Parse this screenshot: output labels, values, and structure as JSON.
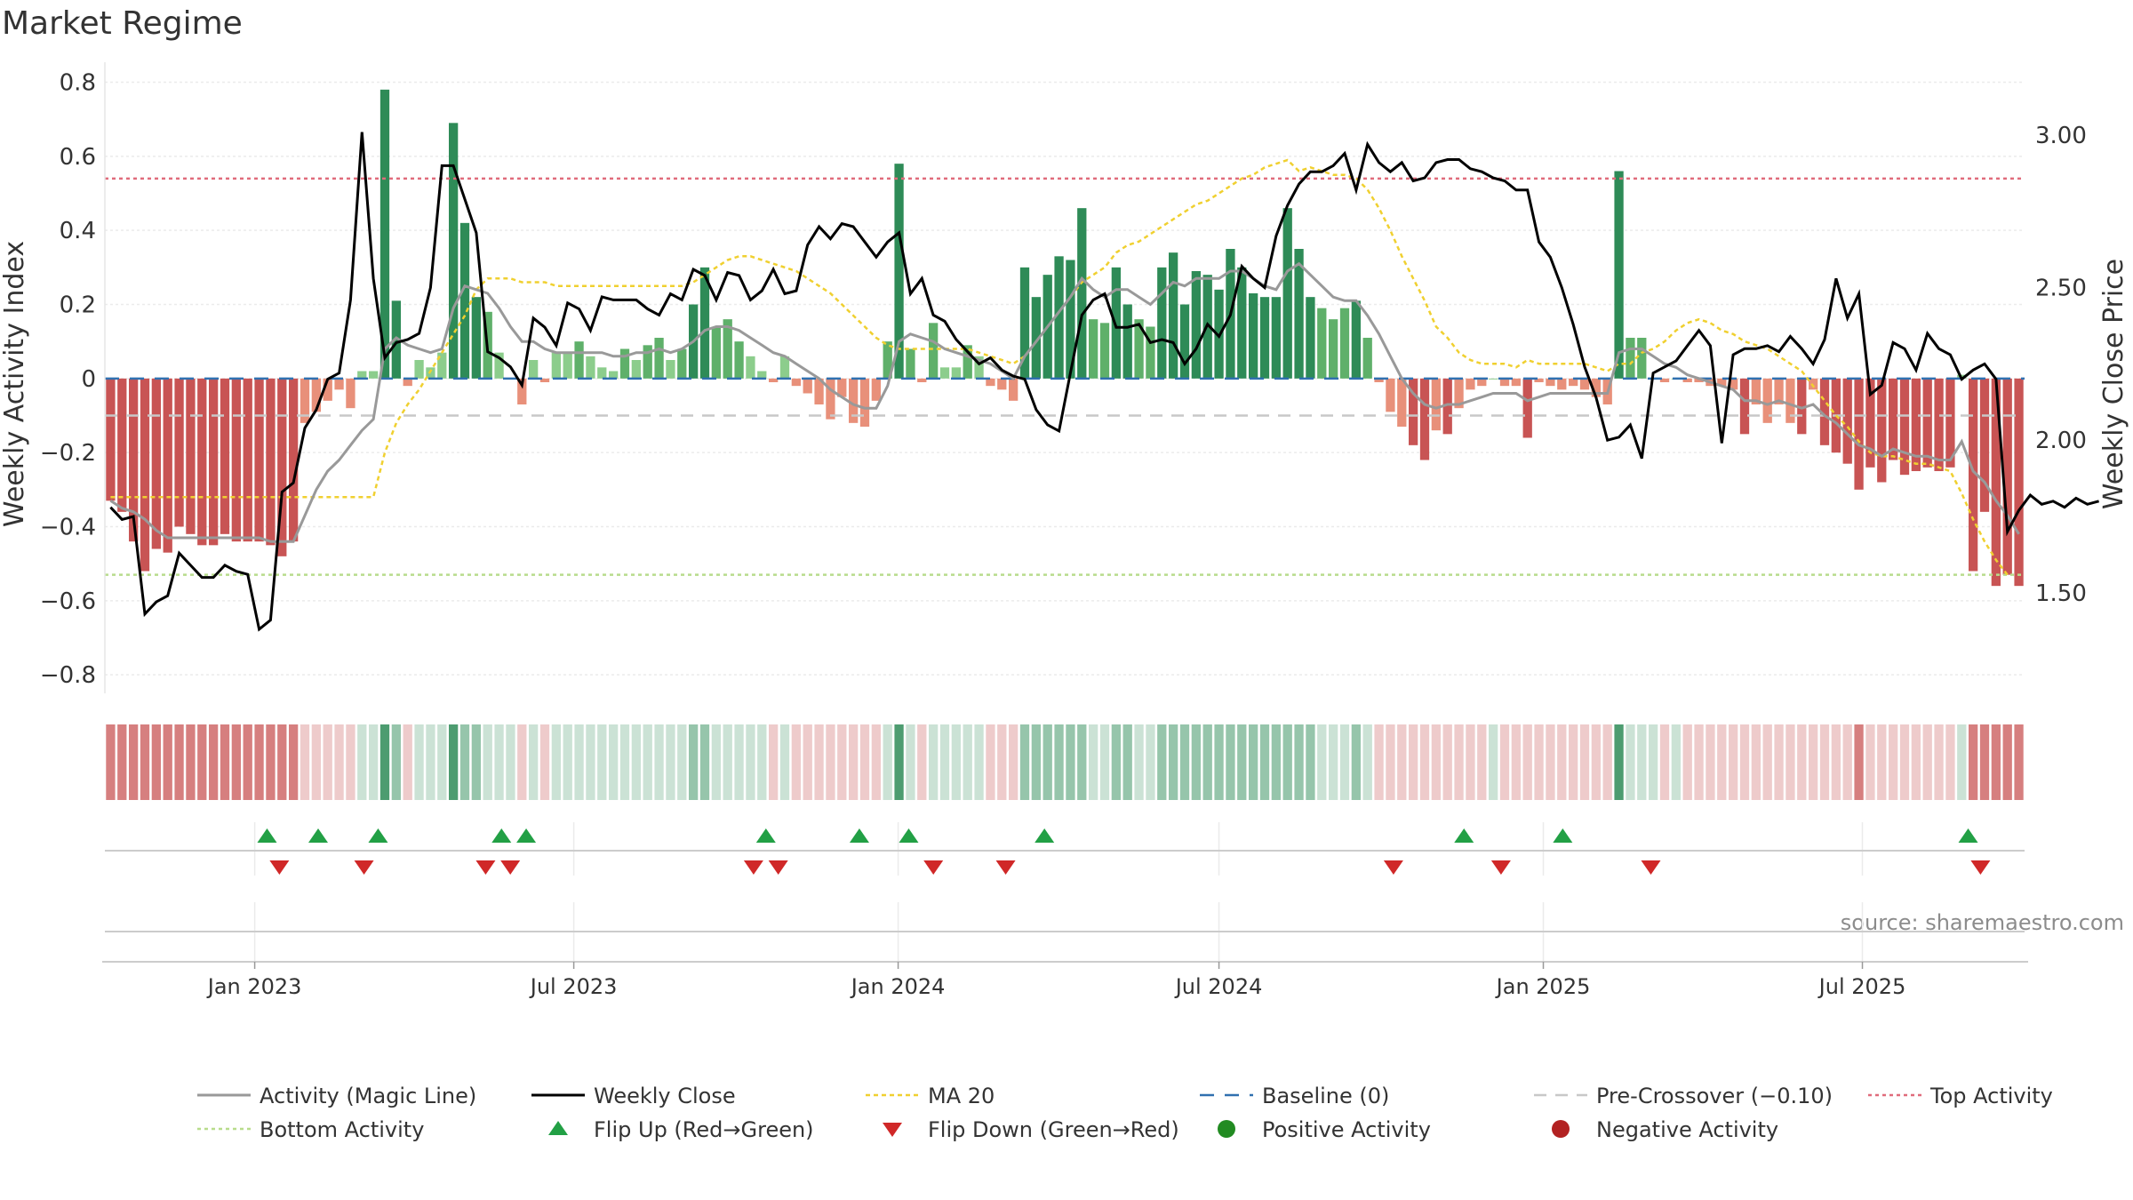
{
  "chart_data": {
    "type": "bar",
    "title": "Market Regime",
    "ylabel_left": "Weekly Activity Index",
    "ylabel_right": "Weekly Close Price",
    "source": "source: sharemaestro.com",
    "x_start": "2022-10-08",
    "x_end": "2025-10-01",
    "left_axis": {
      "range": [
        -0.85,
        0.83
      ],
      "ticks": [
        -0.8,
        -0.6,
        -0.4,
        -0.2,
        0,
        0.2,
        0.4,
        0.6,
        0.8
      ],
      "tick_labels": [
        "−0.8",
        "−0.6",
        "−0.4",
        "−0.2",
        "0",
        "0.2",
        "0.4",
        "0.6",
        "0.8"
      ]
    },
    "right_axis": {
      "range": [
        1.17,
        3.21
      ],
      "ticks": [
        1.5,
        2.0,
        2.5,
        3.0
      ],
      "tick_labels": [
        "1.50",
        "2.00",
        "2.50",
        "3.00"
      ]
    },
    "x_ticks": [
      {
        "date": "2023-01-01",
        "label": "Jan 2023"
      },
      {
        "date": "2023-07-01",
        "label": "Jul 2023"
      },
      {
        "date": "2024-01-01",
        "label": "Jan 2024"
      },
      {
        "date": "2024-07-01",
        "label": "Jul 2024"
      },
      {
        "date": "2025-01-01",
        "label": "Jan 2025"
      },
      {
        "date": "2025-07-01",
        "label": "Jul 2025"
      }
    ],
    "reference_lines": {
      "top_activity": 0.54,
      "bottom_activity": -0.53,
      "pre_crossover": -0.1,
      "baseline": 0
    },
    "activity": [
      -0.33,
      -0.36,
      -0.44,
      -0.52,
      -0.46,
      -0.47,
      -0.4,
      -0.42,
      -0.45,
      -0.45,
      -0.42,
      -0.44,
      -0.44,
      -0.44,
      -0.45,
      -0.48,
      -0.44,
      -0.12,
      -0.09,
      -0.06,
      -0.03,
      -0.08,
      0.02,
      0.02,
      0.78,
      0.21,
      -0.02,
      0.05,
      0.03,
      0.07,
      0.69,
      0.42,
      0.22,
      0.18,
      0.07,
      0.0,
      -0.07,
      0.05,
      -0.01,
      0.07,
      0.07,
      0.1,
      0.06,
      0.03,
      0.02,
      0.08,
      0.05,
      0.09,
      0.11,
      0.05,
      0.08,
      0.2,
      0.3,
      0.14,
      0.16,
      0.1,
      0.06,
      0.02,
      -0.01,
      0.06,
      -0.02,
      -0.04,
      -0.07,
      -0.11,
      -0.05,
      -0.12,
      -0.13,
      -0.06,
      0.1,
      0.58,
      0.08,
      -0.01,
      0.15,
      0.03,
      0.03,
      0.09,
      0.06,
      -0.02,
      -0.03,
      -0.06,
      0.3,
      0.22,
      0.28,
      0.33,
      0.32,
      0.46,
      0.16,
      0.15,
      0.3,
      0.2,
      0.16,
      0.14,
      0.3,
      0.34,
      0.2,
      0.29,
      0.28,
      0.24,
      0.35,
      0.3,
      0.23,
      0.22,
      0.22,
      0.46,
      0.35,
      0.22,
      0.19,
      0.16,
      0.19,
      0.21,
      0.11,
      -0.01,
      -0.09,
      -0.13,
      -0.18,
      -0.22,
      -0.14,
      -0.15,
      -0.08,
      -0.03,
      -0.02,
      0.0,
      -0.02,
      -0.02,
      -0.16,
      -0.01,
      -0.02,
      -0.03,
      -0.02,
      -0.03,
      -0.05,
      -0.07,
      0.56,
      0.11,
      0.11,
      0.0,
      -0.01,
      0.0,
      -0.01,
      -0.01,
      -0.02,
      -0.02,
      -0.03,
      -0.15,
      -0.07,
      -0.12,
      -0.07,
      -0.12,
      -0.15,
      -0.03,
      -0.18,
      -0.2,
      -0.23,
      -0.3,
      -0.24,
      -0.28,
      -0.22,
      -0.26,
      -0.25,
      -0.24,
      -0.25,
      -0.24,
      0.01,
      -0.52,
      -0.36,
      -0.56,
      -0.53,
      -0.56
    ],
    "magic_line": [
      -0.33,
      -0.35,
      -0.36,
      -0.38,
      -0.41,
      -0.43,
      -0.43,
      -0.43,
      -0.43,
      -0.43,
      -0.43,
      -0.43,
      -0.43,
      -0.43,
      -0.44,
      -0.44,
      -0.44,
      -0.37,
      -0.3,
      -0.25,
      -0.22,
      -0.18,
      -0.14,
      -0.11,
      0.08,
      0.11,
      0.09,
      0.08,
      0.07,
      0.08,
      0.19,
      0.25,
      0.24,
      0.23,
      0.19,
      0.14,
      0.1,
      0.1,
      0.08,
      0.07,
      0.07,
      0.07,
      0.07,
      0.07,
      0.06,
      0.06,
      0.07,
      0.07,
      0.08,
      0.07,
      0.08,
      0.1,
      0.13,
      0.14,
      0.14,
      0.13,
      0.11,
      0.09,
      0.07,
      0.06,
      0.04,
      0.02,
      0.0,
      -0.03,
      -0.05,
      -0.07,
      -0.08,
      -0.08,
      -0.02,
      0.1,
      0.12,
      0.11,
      0.1,
      0.08,
      0.07,
      0.06,
      0.05,
      0.04,
      0.02,
      0.0,
      0.06,
      0.1,
      0.14,
      0.18,
      0.22,
      0.27,
      0.24,
      0.22,
      0.24,
      0.24,
      0.22,
      0.2,
      0.23,
      0.26,
      0.25,
      0.27,
      0.27,
      0.27,
      0.29,
      0.29,
      0.27,
      0.25,
      0.24,
      0.29,
      0.31,
      0.28,
      0.25,
      0.22,
      0.21,
      0.21,
      0.17,
      0.12,
      0.06,
      0.0,
      -0.04,
      -0.07,
      -0.08,
      -0.07,
      -0.07,
      -0.06,
      -0.05,
      -0.04,
      -0.04,
      -0.04,
      -0.06,
      -0.05,
      -0.04,
      -0.04,
      -0.04,
      -0.04,
      -0.04,
      -0.04,
      0.07,
      0.08,
      0.08,
      0.06,
      0.04,
      0.03,
      0.01,
      0.0,
      -0.01,
      -0.02,
      -0.03,
      -0.06,
      -0.06,
      -0.07,
      -0.06,
      -0.07,
      -0.08,
      -0.07,
      -0.1,
      -0.12,
      -0.15,
      -0.18,
      -0.19,
      -0.21,
      -0.19,
      -0.2,
      -0.21,
      -0.21,
      -0.22,
      -0.22,
      -0.17,
      -0.25,
      -0.28,
      -0.33,
      -0.37,
      -0.42
    ],
    "ma20": [
      -0.32,
      -0.32,
      -0.32,
      -0.32,
      -0.32,
      -0.32,
      -0.32,
      -0.32,
      -0.32,
      -0.32,
      -0.32,
      -0.32,
      -0.32,
      -0.32,
      -0.32,
      -0.32,
      -0.32,
      -0.32,
      -0.32,
      -0.32,
      -0.32,
      -0.32,
      -0.32,
      -0.32,
      -0.2,
      -0.12,
      -0.07,
      -0.03,
      0.02,
      0.07,
      0.12,
      0.17,
      0.24,
      0.27,
      0.27,
      0.27,
      0.26,
      0.26,
      0.26,
      0.25,
      0.25,
      0.25,
      0.25,
      0.25,
      0.25,
      0.25,
      0.25,
      0.25,
      0.25,
      0.25,
      0.25,
      0.26,
      0.28,
      0.3,
      0.32,
      0.33,
      0.33,
      0.32,
      0.31,
      0.3,
      0.29,
      0.27,
      0.25,
      0.23,
      0.2,
      0.17,
      0.14,
      0.11,
      0.09,
      0.08,
      0.08,
      0.08,
      0.08,
      0.08,
      0.08,
      0.08,
      0.07,
      0.06,
      0.05,
      0.04,
      0.06,
      0.1,
      0.14,
      0.18,
      0.22,
      0.26,
      0.28,
      0.3,
      0.34,
      0.36,
      0.37,
      0.39,
      0.41,
      0.43,
      0.45,
      0.47,
      0.48,
      0.5,
      0.52,
      0.54,
      0.55,
      0.57,
      0.58,
      0.59,
      0.56,
      0.57,
      0.56,
      0.55,
      0.55,
      0.54,
      0.51,
      0.46,
      0.4,
      0.33,
      0.27,
      0.21,
      0.14,
      0.11,
      0.07,
      0.05,
      0.04,
      0.04,
      0.04,
      0.03,
      0.05,
      0.04,
      0.04,
      0.04,
      0.04,
      0.04,
      0.03,
      0.02,
      0.04,
      0.04,
      0.07,
      0.08,
      0.1,
      0.13,
      0.15,
      0.16,
      0.15,
      0.13,
      0.12,
      0.1,
      0.09,
      0.08,
      0.06,
      0.04,
      0.02,
      -0.02,
      -0.06,
      -0.1,
      -0.13,
      -0.17,
      -0.2,
      -0.21,
      -0.21,
      -0.22,
      -0.23,
      -0.23,
      -0.24,
      -0.25,
      -0.31,
      -0.38,
      -0.44,
      -0.49,
      -0.53
    ],
    "weekly_close": [
      1.78,
      1.74,
      1.75,
      1.43,
      1.47,
      1.49,
      1.63,
      1.59,
      1.55,
      1.55,
      1.59,
      1.57,
      1.56,
      1.38,
      1.41,
      1.83,
      1.86,
      2.04,
      2.1,
      2.2,
      2.22,
      2.46,
      3.01,
      2.53,
      2.27,
      2.32,
      2.33,
      2.35,
      2.5,
      2.9,
      2.9,
      2.79,
      2.68,
      2.29,
      2.27,
      2.24,
      2.18,
      2.4,
      2.37,
      2.31,
      2.45,
      2.43,
      2.36,
      2.47,
      2.46,
      2.46,
      2.46,
      2.43,
      2.41,
      2.48,
      2.46,
      2.56,
      2.54,
      2.46,
      2.55,
      2.54,
      2.46,
      2.49,
      2.56,
      2.48,
      2.49,
      2.64,
      2.7,
      2.66,
      2.71,
      2.7,
      2.65,
      2.6,
      2.65,
      2.68,
      2.48,
      2.53,
      2.41,
      2.39,
      2.33,
      2.29,
      2.25,
      2.27,
      2.23,
      2.21,
      2.2,
      2.1,
      2.05,
      2.03,
      2.22,
      2.41,
      2.46,
      2.48,
      2.37,
      2.37,
      2.38,
      2.32,
      2.33,
      2.32,
      2.25,
      2.3,
      2.38,
      2.34,
      2.41,
      2.57,
      2.53,
      2.5,
      2.67,
      2.77,
      2.84,
      2.88,
      2.88,
      2.9,
      2.94,
      2.82,
      2.97,
      2.91,
      2.88,
      2.91,
      2.85,
      2.86,
      2.91,
      2.92,
      2.92,
      2.89,
      2.88,
      2.86,
      2.85,
      2.82,
      2.82,
      2.65,
      2.6,
      2.5,
      2.38,
      2.24,
      2.14,
      2.0,
      2.01,
      2.05,
      1.94,
      2.22,
      2.24,
      2.26,
      2.31,
      2.36,
      2.31,
      1.99,
      2.28,
      2.3,
      2.3,
      2.31,
      2.29,
      2.34,
      2.3,
      2.25,
      2.33,
      2.53,
      2.4,
      2.48,
      2.15,
      2.18,
      2.32,
      2.3,
      2.23,
      2.35,
      2.3,
      2.28,
      2.2,
      2.23,
      2.25,
      2.2,
      1.7,
      1.77,
      1.82,
      1.79,
      1.8,
      1.78,
      1.81,
      1.79,
      1.8
    ],
    "flip_up_dates": [
      "2023-01-08",
      "2023-02-06",
      "2023-03-12",
      "2023-05-21",
      "2023-06-04",
      "2023-10-18",
      "2023-12-10",
      "2024-01-07",
      "2024-03-24",
      "2024-11-17",
      "2025-01-12",
      "2025-08-30"
    ],
    "flip_down_dates": [
      "2023-01-15",
      "2023-03-04",
      "2023-05-12",
      "2023-05-26",
      "2023-10-11",
      "2023-10-25",
      "2024-01-21",
      "2024-03-02",
      "2024-10-08",
      "2024-12-08",
      "2025-03-03",
      "2025-09-06"
    ],
    "legend": [
      {
        "key": "magic_line",
        "label": "Activity (Magic Line)"
      },
      {
        "key": "weekly_close",
        "label": "Weekly Close"
      },
      {
        "key": "ma20",
        "label": "MA 20"
      },
      {
        "key": "baseline",
        "label": "Baseline (0)"
      },
      {
        "key": "pre_crossover",
        "label": "Pre-Crossover (−0.10)"
      },
      {
        "key": "top",
        "label": "Top Activity"
      },
      {
        "key": "bottom",
        "label": "Bottom Activity"
      },
      {
        "key": "flip_up",
        "label": "Flip Up (Red→Green)"
      },
      {
        "key": "flip_down",
        "label": "Flip Down (Green→Red)"
      },
      {
        "key": "positive",
        "label": "Positive Activity"
      },
      {
        "key": "negative",
        "label": "Negative Activity"
      }
    ],
    "colors": {
      "green_dark": "#2e8b57",
      "green_mid": "#5fb06a",
      "green_light": "#8ccd8c",
      "red_dark": "#c85454",
      "red_light": "#e8907a",
      "magic_line": "#999999",
      "weekly_close": "#000000",
      "ma20": "#f0d030",
      "baseline": "#3070b0",
      "pre_crossover": "#c8c8c8",
      "top": "#e06c7c",
      "bottom": "#b8dc8c",
      "flip_up": "#22a045",
      "flip_down": "#d02828",
      "positive": "#228b22",
      "negative": "#b22222"
    }
  }
}
